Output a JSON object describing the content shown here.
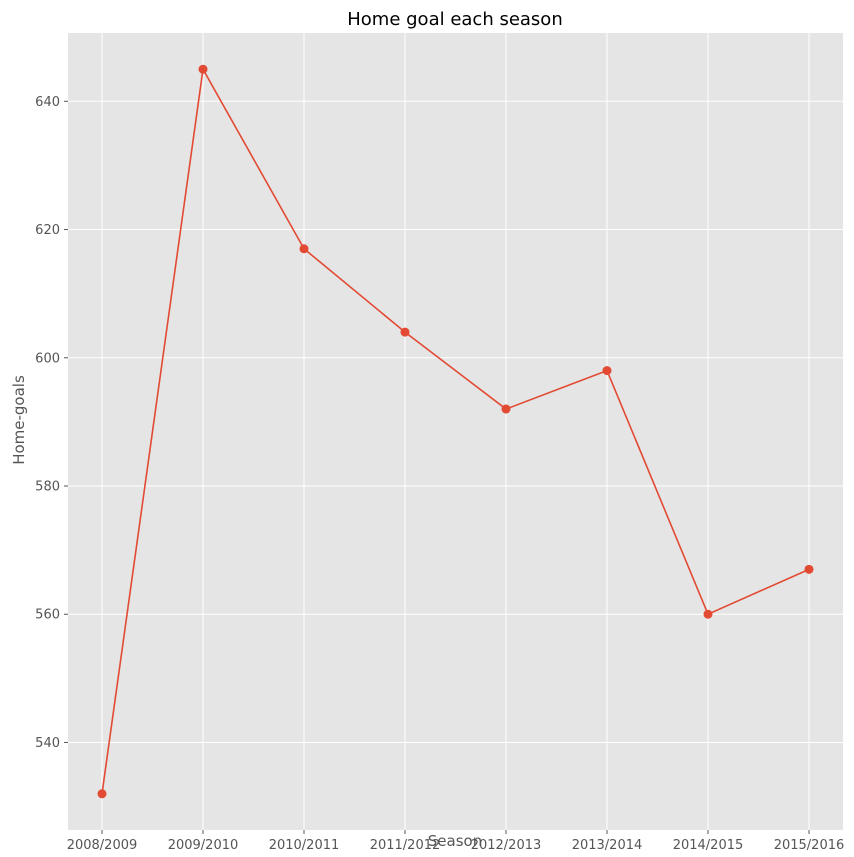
{
  "chart_data": {
    "type": "line",
    "title": "Home goal each season",
    "xlabel": "Season",
    "ylabel": "Home-goals",
    "categories": [
      "2008/2009",
      "2009/2010",
      "2010/2011",
      "2011/2012",
      "2012/2013",
      "2013/2014",
      "2014/2015",
      "2015/2016"
    ],
    "series": [
      {
        "values": [
          532,
          645,
          617,
          604,
          592,
          598,
          560,
          567
        ]
      }
    ],
    "ylim": [
      526.35,
      650.65
    ],
    "yticks": [
      540,
      560,
      580,
      600,
      620,
      640
    ],
    "grid": true,
    "markers": true,
    "colors": {
      "plot_background": "#e5e5e5",
      "grid": "#ffffff",
      "line": "#e24a33",
      "tick_text": "#555555"
    }
  }
}
